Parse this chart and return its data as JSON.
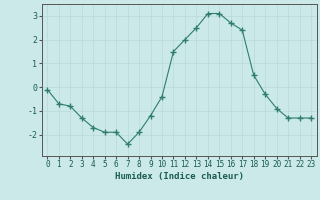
{
  "x": [
    0,
    1,
    2,
    3,
    4,
    5,
    6,
    7,
    8,
    9,
    10,
    11,
    12,
    13,
    14,
    15,
    16,
    17,
    18,
    19,
    20,
    21,
    22,
    23
  ],
  "y": [
    -0.1,
    -0.7,
    -0.8,
    -1.3,
    -1.7,
    -1.9,
    -1.9,
    -2.4,
    -1.9,
    -1.2,
    -0.4,
    1.5,
    2.0,
    2.5,
    3.1,
    3.1,
    2.7,
    2.4,
    0.5,
    -0.3,
    -0.9,
    -1.3,
    -1.3,
    -1.3
  ],
  "xlabel": "Humidex (Indice chaleur)",
  "xlim": [
    -0.5,
    23.5
  ],
  "ylim": [
    -2.9,
    3.5
  ],
  "yticks": [
    -2,
    -1,
    0,
    1,
    2,
    3
  ],
  "xticks": [
    0,
    1,
    2,
    3,
    4,
    5,
    6,
    7,
    8,
    9,
    10,
    11,
    12,
    13,
    14,
    15,
    16,
    17,
    18,
    19,
    20,
    21,
    22,
    23
  ],
  "line_color": "#2e7d6e",
  "marker_color": "#2e7d6e",
  "bg_color": "#cce9e9",
  "grid_color": "#b8d8d8",
  "axis_color": "#555555",
  "label_color": "#1a5c50",
  "tick_label_color": "#1a5c50",
  "xlabel_fontsize": 6.5,
  "tick_fontsize": 5.5
}
